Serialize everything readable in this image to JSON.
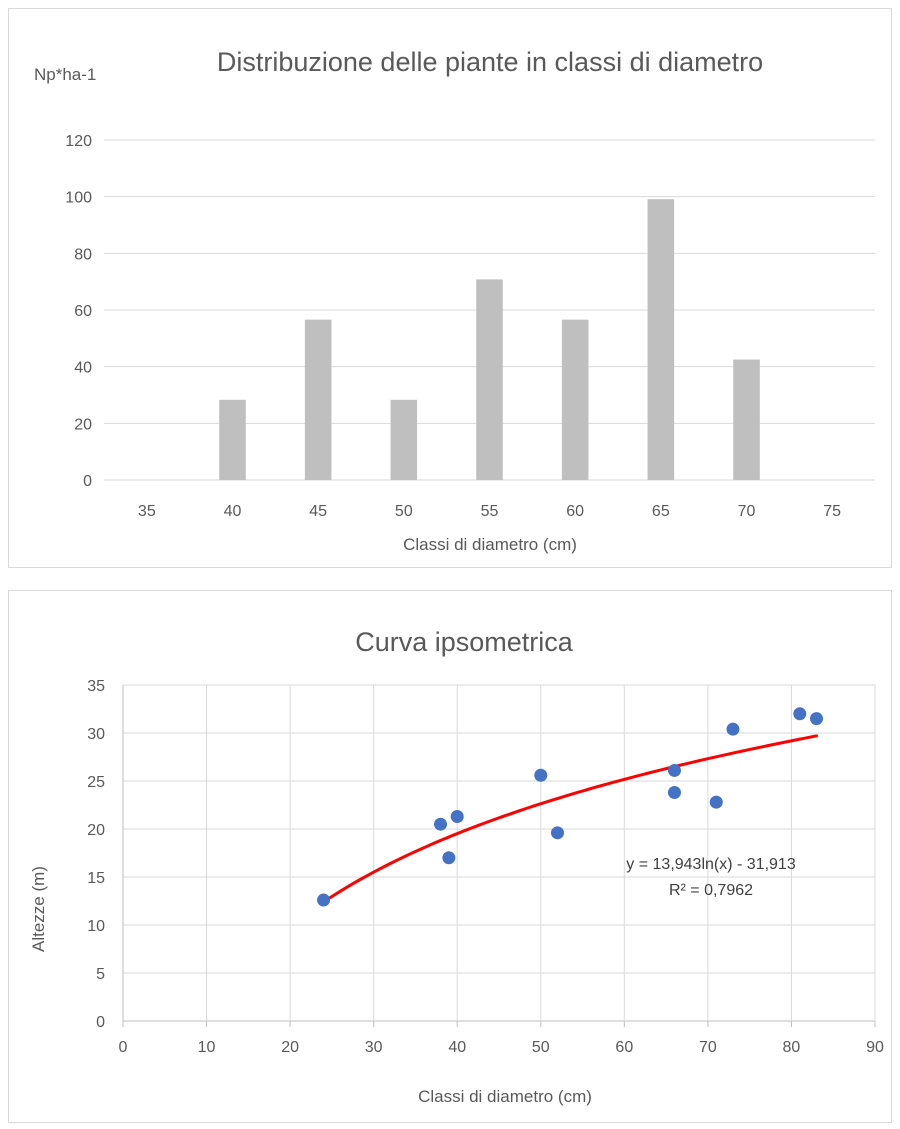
{
  "chart_data": [
    {
      "type": "bar",
      "title": "Distribuzione delle piante in classi di diametro",
      "xlabel": "Classi di diametro (cm)",
      "ylabel": "Np*ha-1",
      "categories": [
        "35",
        "40",
        "45",
        "50",
        "55",
        "60",
        "65",
        "70",
        "75"
      ],
      "values": [
        0,
        28.3,
        56.6,
        28.3,
        70.8,
        56.6,
        99.1,
        42.5,
        0
      ],
      "ylim": [
        0,
        120
      ],
      "yticks": [
        "0",
        "20",
        "40",
        "60",
        "80",
        "100",
        "120"
      ],
      "grid": "horizontal",
      "bar_color": "#bfbfbf"
    },
    {
      "type": "scatter",
      "title": "Curva ipsometrica",
      "xlabel": "Classi di diametro (cm)",
      "ylabel": "Altezze (m)",
      "x": [
        24,
        38,
        39,
        40,
        50,
        52,
        66,
        66,
        71,
        73,
        81,
        83
      ],
      "y": [
        12.6,
        20.5,
        17.0,
        21.3,
        25.6,
        19.6,
        26.1,
        23.8,
        22.8,
        30.4,
        32.0,
        31.5
      ],
      "xlim": [
        0,
        90
      ],
      "ylim": [
        0,
        35
      ],
      "xticks": [
        "0",
        "10",
        "20",
        "30",
        "40",
        "50",
        "60",
        "70",
        "80",
        "90"
      ],
      "yticks": [
        "0",
        "5",
        "10",
        "15",
        "20",
        "25",
        "30",
        "35"
      ],
      "grid": "both",
      "point_color": "#4472c4",
      "trendline": {
        "type": "logarithmic",
        "a": 13.943,
        "b": -31.913,
        "x_range": [
          24,
          83
        ],
        "color": "#ff0000",
        "equation": "y = 13,943ln(x) - 31,913",
        "r2_label": "R² = 0,7962"
      }
    }
  ]
}
